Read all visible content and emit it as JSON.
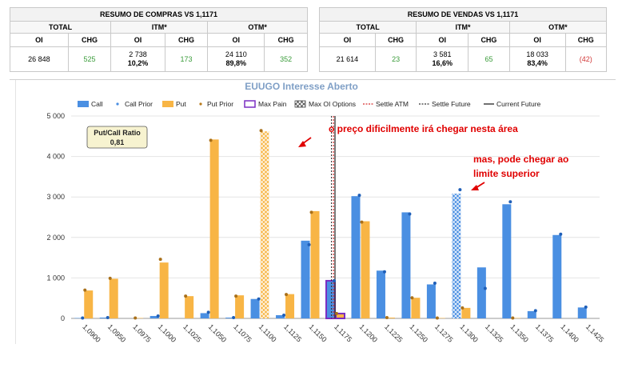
{
  "buy_summary": {
    "title": "RESUMO DE COMPRAS VS 1,1171",
    "groups": [
      "TOTAL",
      "ITM*",
      "OTM*"
    ],
    "headers": [
      "OI",
      "CHG",
      "OI",
      "CHG",
      "OI",
      "CHG"
    ],
    "total_oi": "26 848",
    "total_chg": "525",
    "itm_oi": "2 738",
    "itm_pct": "10,2%",
    "itm_chg": "173",
    "otm_oi": "24 110",
    "otm_pct": "89,8%",
    "otm_chg": "352"
  },
  "sell_summary": {
    "title": "RESUMO DE VENDAS VS 1,1171",
    "groups": [
      "TOTAL",
      "ITM*",
      "OTM*"
    ],
    "headers": [
      "OI",
      "CHG",
      "OI",
      "CHG",
      "OI",
      "CHG"
    ],
    "total_oi": "21 614",
    "total_chg": "23",
    "itm_oi": "3 581",
    "itm_pct": "16,6%",
    "itm_chg": "65",
    "otm_oi": "18 033",
    "otm_pct": "83,4%",
    "otm_chg": "(42)"
  },
  "colors": {
    "call": "#4a8fe2",
    "put": "#f8b545",
    "max_pain": "#7a2ec2",
    "settle_atm": "#d63030",
    "title": "#7f9fc6",
    "annotation": "#e00000",
    "green": "#3a9c3a",
    "red": "#d23a3a"
  },
  "chart_data": {
    "type": "bar",
    "title": "EUUGO Interesse Aberto",
    "legend": [
      "Call",
      "Call Prior",
      "Put",
      "Put Prior",
      "Max Pain",
      "Max OI Options",
      "Settle ATM",
      "Settle Future",
      "Current Future"
    ],
    "legend_position": "top",
    "ylim": [
      0,
      5000
    ],
    "yticks": [
      0,
      1000,
      2000,
      3000,
      4000,
      5000
    ],
    "ytick_labels": [
      "0",
      "1 000",
      "2 000",
      "3 000",
      "4 000",
      "5 000"
    ],
    "categories": [
      "1,0900",
      "1,0950",
      "1,0975",
      "1,1000",
      "1,1025",
      "1,1050",
      "1,1075",
      "1,1100",
      "1,1125",
      "1,1150",
      "1,1175",
      "1,1200",
      "1,1225",
      "1,1250",
      "1,1275",
      "1,1300",
      "1,1325",
      "1,1350",
      "1,1375",
      "1,1400",
      "1,1425"
    ],
    "series": [
      {
        "name": "Call",
        "values": [
          10,
          20,
          0,
          60,
          0,
          130,
          20,
          480,
          80,
          1920,
          930,
          3020,
          1180,
          2620,
          840,
          3080,
          1260,
          2820,
          180,
          2060,
          270
        ]
      },
      {
        "name": "Call Prior",
        "values": [
          10,
          20,
          0,
          60,
          0,
          150,
          20,
          480,
          80,
          1820,
          930,
          3040,
          1150,
          2580,
          870,
          3180,
          740,
          2880,
          190,
          2080,
          280
        ]
      },
      {
        "name": "Put",
        "values": [
          690,
          980,
          10,
          1380,
          550,
          4420,
          570,
          4620,
          600,
          2650,
          120,
          2400,
          20,
          510,
          10,
          260,
          0,
          10,
          0,
          0,
          0
        ]
      },
      {
        "name": "Put Prior",
        "values": [
          700,
          990,
          10,
          1460,
          550,
          4400,
          550,
          4640,
          590,
          2620,
          120,
          2380,
          20,
          510,
          10,
          260,
          0,
          10,
          0,
          0,
          0
        ]
      }
    ],
    "max_pain": "1,1175",
    "max_oi_options": [
      "1,1100",
      "1,1300"
    ],
    "put_call_ratio_label": "Put/Call Ratio",
    "put_call_ratio": "0,81",
    "annotations": [
      {
        "text": "o preço dificilmente irá chegar nesta área"
      },
      {
        "text_line1": "mas, pode chegar ao",
        "text_line2": "limite superior"
      }
    ]
  }
}
